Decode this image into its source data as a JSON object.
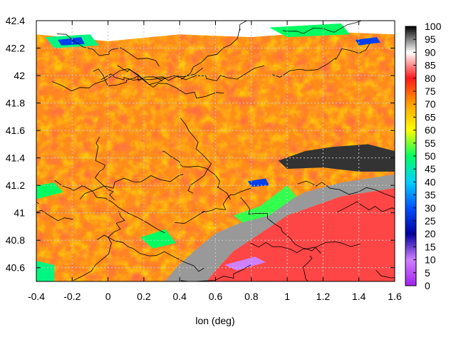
{
  "chart_data": {
    "type": "heatmap",
    "title": "",
    "xlabel": "lon (deg)",
    "ylabel": "",
    "xlim": [
      -0.4,
      1.6
    ],
    "ylim": [
      40.5,
      42.4
    ],
    "x_ticks": [
      "-0.4",
      "-0.2",
      "0",
      "0.2",
      "0.4",
      "0.6",
      "0.8",
      "1",
      "1.2",
      "1.4",
      "1.6"
    ],
    "y_ticks": [
      "40.6",
      "40.8",
      "41",
      "41.2",
      "41.4",
      "41.6",
      "41.8",
      "42",
      "42.2",
      "42.4"
    ],
    "colorbar": {
      "range": [
        0,
        100
      ],
      "ticks": [
        "0",
        "5",
        "10",
        "15",
        "20",
        "25",
        "30",
        "35",
        "40",
        "45",
        "50",
        "55",
        "60",
        "65",
        "70",
        "75",
        "80",
        "85",
        "90",
        "95",
        "100"
      ],
      "colors": [
        {
          "v": 0,
          "c": "#a020f0"
        },
        {
          "v": 10,
          "c": "#d080ff"
        },
        {
          "v": 20,
          "c": "#0000a0"
        },
        {
          "v": 30,
          "c": "#0050ff"
        },
        {
          "v": 40,
          "c": "#00d0ff"
        },
        {
          "v": 50,
          "c": "#00ff60"
        },
        {
          "v": 60,
          "c": "#ffff00"
        },
        {
          "v": 70,
          "c": "#ffa000"
        },
        {
          "v": 80,
          "c": "#ff1818"
        },
        {
          "v": 90,
          "c": "#ffffff"
        },
        {
          "v": 100,
          "c": "#000000"
        }
      ]
    },
    "grid": true,
    "contours": true,
    "regions": [
      {
        "kind": "sea",
        "value": 82,
        "polygon": [
          [
            1.6,
            40.5
          ],
          [
            1.6,
            41.18
          ],
          [
            1.3,
            41.12
          ],
          [
            1.0,
            40.98
          ],
          [
            0.85,
            40.85
          ],
          [
            0.7,
            40.72
          ],
          [
            0.6,
            40.58
          ],
          [
            0.55,
            40.5
          ]
        ]
      },
      {
        "kind": "coast-belt",
        "value": 94,
        "polygon": [
          [
            0.32,
            40.5
          ],
          [
            0.55,
            40.5
          ],
          [
            0.6,
            40.58
          ],
          [
            0.7,
            40.72
          ],
          [
            0.85,
            40.85
          ],
          [
            1.0,
            40.98
          ],
          [
            1.3,
            41.12
          ],
          [
            1.6,
            41.18
          ],
          [
            1.6,
            41.28
          ],
          [
            1.3,
            41.22
          ],
          [
            1.1,
            41.15
          ],
          [
            0.95,
            41.05
          ],
          [
            0.78,
            40.95
          ],
          [
            0.6,
            40.85
          ],
          [
            0.48,
            40.72
          ],
          [
            0.38,
            40.6
          ]
        ]
      },
      {
        "kind": "mountains",
        "value": 98,
        "polygon": [
          [
            0.95,
            41.38
          ],
          [
            1.1,
            41.45
          ],
          [
            1.25,
            41.48
          ],
          [
            1.45,
            41.5
          ],
          [
            1.6,
            41.45
          ],
          [
            1.6,
            41.3
          ],
          [
            1.4,
            41.3
          ],
          [
            1.2,
            41.33
          ],
          [
            1.0,
            41.32
          ]
        ]
      },
      {
        "kind": "north-belt",
        "value": 90,
        "polygon": [
          [
            -0.4,
            42.4
          ],
          [
            1.6,
            42.4
          ],
          [
            1.6,
            42.3
          ],
          [
            1.2,
            42.32
          ],
          [
            0.8,
            42.28
          ],
          [
            0.4,
            42.3
          ],
          [
            0.0,
            42.25
          ],
          [
            -0.4,
            42.3
          ]
        ]
      },
      {
        "kind": "green-patch",
        "value": 50,
        "polygon": [
          [
            -0.4,
            41.2
          ],
          [
            -0.3,
            41.22
          ],
          [
            -0.25,
            41.15
          ],
          [
            -0.4,
            41.1
          ]
        ]
      },
      {
        "kind": "green-patch",
        "value": 50,
        "polygon": [
          [
            0.18,
            40.82
          ],
          [
            0.32,
            40.88
          ],
          [
            0.38,
            40.78
          ],
          [
            0.25,
            40.74
          ]
        ]
      },
      {
        "kind": "green-patch",
        "value": 52,
        "polygon": [
          [
            0.7,
            40.98
          ],
          [
            0.85,
            41.05
          ],
          [
            1.0,
            41.2
          ],
          [
            1.05,
            41.12
          ],
          [
            0.9,
            40.98
          ],
          [
            0.75,
            40.93
          ]
        ]
      },
      {
        "kind": "green-patch",
        "value": 48,
        "polygon": [
          [
            -0.35,
            42.28
          ],
          [
            -0.1,
            42.3
          ],
          [
            -0.05,
            42.22
          ],
          [
            -0.3,
            42.2
          ]
        ]
      },
      {
        "kind": "green-patch",
        "value": 50,
        "polygon": [
          [
            0.9,
            42.35
          ],
          [
            1.3,
            42.38
          ],
          [
            1.35,
            42.3
          ],
          [
            1.0,
            42.28
          ]
        ]
      },
      {
        "kind": "green-patch",
        "value": 48,
        "polygon": [
          [
            -0.4,
            40.65
          ],
          [
            -0.3,
            40.62
          ],
          [
            -0.3,
            40.5
          ],
          [
            -0.4,
            40.5
          ]
        ]
      },
      {
        "kind": "blue-spot",
        "value": 28,
        "polygon": [
          [
            -0.28,
            42.26
          ],
          [
            -0.15,
            42.28
          ],
          [
            -0.13,
            42.23
          ],
          [
            -0.26,
            42.22
          ]
        ]
      },
      {
        "kind": "blue-spot",
        "value": 28,
        "polygon": [
          [
            0.78,
            41.23
          ],
          [
            0.88,
            41.25
          ],
          [
            0.9,
            41.2
          ],
          [
            0.8,
            41.19
          ]
        ]
      },
      {
        "kind": "blue-spot",
        "value": 28,
        "polygon": [
          [
            1.38,
            42.26
          ],
          [
            1.5,
            42.28
          ],
          [
            1.52,
            42.24
          ],
          [
            1.4,
            42.22
          ]
        ]
      },
      {
        "kind": "violet-spot",
        "value": 10,
        "polygon": [
          [
            0.65,
            40.62
          ],
          [
            0.82,
            40.68
          ],
          [
            0.88,
            40.64
          ],
          [
            0.72,
            40.58
          ]
        ]
      }
    ]
  }
}
